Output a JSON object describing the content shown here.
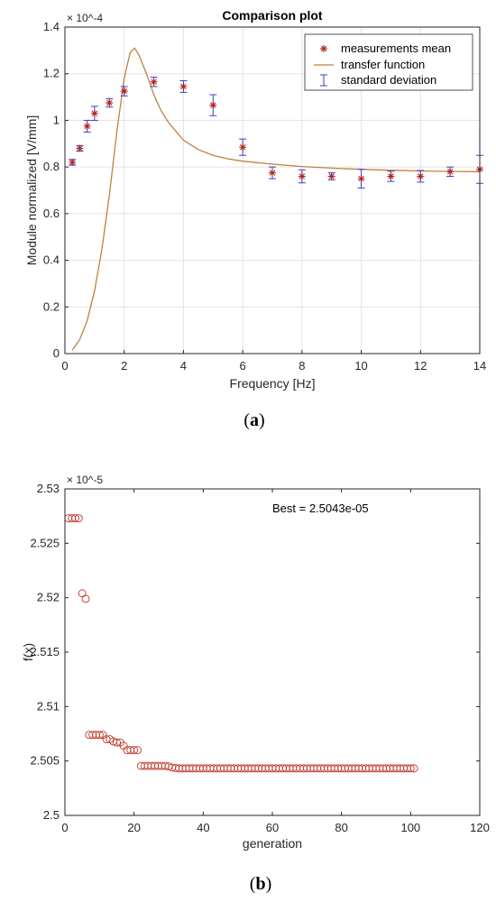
{
  "chart_data": [
    {
      "type": "scatter",
      "title": "Comparison plot",
      "xlabel": "Frequency [Hz]",
      "ylabel": "Module normalized [V/mm]",
      "y_exponent": "× 10^-4",
      "xlim": [
        0,
        14
      ],
      "ylim": [
        0,
        1.4
      ],
      "grid": true,
      "legend_position": "top-right",
      "x_ticks": [
        "0",
        "2",
        "4",
        "6",
        "8",
        "10",
        "12",
        "14"
      ],
      "y_ticks": [
        "0",
        "0.2",
        "0.4",
        "0.6",
        "0.8",
        "1",
        "1.2",
        "1.4"
      ],
      "caption": "a",
      "series": [
        {
          "name": "measurements mean",
          "kind": "marker",
          "x": [
            0.25,
            0.5,
            0.75,
            1,
            1.5,
            2,
            3,
            4,
            5,
            6,
            7,
            8,
            9,
            10,
            11,
            12,
            13,
            14
          ],
          "y": [
            0.82,
            0.88,
            0.975,
            1.03,
            1.075,
            1.125,
            1.165,
            1.145,
            1.065,
            0.885,
            0.775,
            0.76,
            0.76,
            0.75,
            0.76,
            0.76,
            0.78,
            0.79
          ],
          "err": [
            0.012,
            0.012,
            0.025,
            0.03,
            0.018,
            0.02,
            0.02,
            0.025,
            0.045,
            0.035,
            0.025,
            0.028,
            0.015,
            0.04,
            0.022,
            0.025,
            0.02,
            0.06
          ]
        },
        {
          "name": "transfer function",
          "kind": "line",
          "x": [
            0.25,
            0.5,
            0.75,
            1,
            1.25,
            1.5,
            1.75,
            2,
            2.2,
            2.35,
            2.5,
            2.75,
            3,
            3.25,
            3.5,
            4,
            4.5,
            5,
            5.5,
            6,
            7,
            8,
            9,
            10,
            11,
            12,
            13,
            14
          ],
          "y": [
            0.015,
            0.06,
            0.14,
            0.27,
            0.45,
            0.68,
            0.95,
            1.18,
            1.29,
            1.31,
            1.28,
            1.2,
            1.11,
            1.04,
            0.99,
            0.915,
            0.875,
            0.85,
            0.835,
            0.825,
            0.812,
            0.802,
            0.795,
            0.79,
            0.786,
            0.783,
            0.781,
            0.78
          ]
        },
        {
          "name": "standard deviation",
          "kind": "errorbar"
        }
      ],
      "colors": {
        "marker": "#b22222",
        "line": "#c08040",
        "errorbar": "#3b3bd0"
      }
    },
    {
      "type": "scatter",
      "title": "",
      "xlabel": "generation",
      "ylabel": "f(x)",
      "y_exponent": "× 10^-5",
      "xlim": [
        0,
        120
      ],
      "ylim": [
        2.5,
        2.53
      ],
      "grid": false,
      "x_ticks": [
        "0",
        "20",
        "40",
        "60",
        "80",
        "100",
        "120"
      ],
      "y_ticks": [
        "2.5",
        "2.505",
        "2.51",
        "2.515",
        "2.52",
        "2.525",
        "2.53"
      ],
      "annotation": "Best = 2.5043e-05",
      "caption": "b",
      "series": [
        {
          "name": "",
          "marker": "circle",
          "x": [
            1,
            2,
            3,
            4,
            5,
            6,
            7,
            8,
            9,
            10,
            11,
            12,
            13,
            14,
            15,
            16,
            17,
            18,
            19,
            20,
            21
          ],
          "y": [
            2.5273,
            2.5273,
            2.5273,
            2.5273,
            2.5204,
            2.5199,
            2.5074,
            2.5074,
            2.5074,
            2.5074,
            2.5074,
            2.507,
            2.507,
            2.5068,
            2.5067,
            2.5067,
            2.5064,
            2.506,
            2.506,
            2.506,
            2.506
          ],
          "tail_from": 22,
          "tail_to": 101,
          "tail_values": [
            2.50455,
            2.50455,
            2.50455,
            2.50455,
            2.50455,
            2.50455,
            2.50455,
            2.50455,
            2.5045,
            2.5044,
            2.50435,
            2.50432
          ]
        }
      ],
      "colors": {
        "marker": "#c0392b"
      }
    }
  ]
}
